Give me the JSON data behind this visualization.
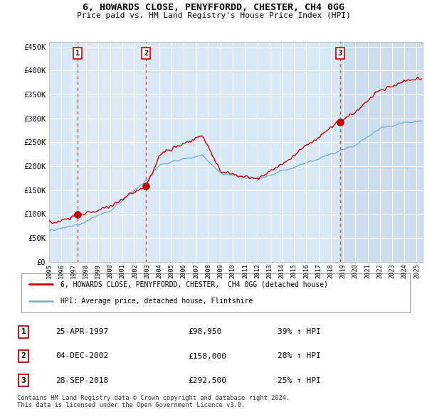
{
  "title1": "6, HOWARDS CLOSE, PENYFFORDD, CHESTER, CH4 0GG",
  "title2": "Price paid vs. HM Land Registry's House Price Index (HPI)",
  "ylabel_ticks": [
    "£0",
    "£50K",
    "£100K",
    "£150K",
    "£200K",
    "£250K",
    "£300K",
    "£350K",
    "£400K",
    "£450K"
  ],
  "ylabel_values": [
    0,
    50000,
    100000,
    150000,
    200000,
    250000,
    300000,
    350000,
    400000,
    450000
  ],
  "ylim": [
    0,
    460000
  ],
  "xlim_start": 1995.0,
  "xlim_end": 2025.5,
  "bg_color": "#ccdded",
  "grid_color": "#ffffff",
  "sale_dates": [
    1997.32,
    2002.92,
    2018.74
  ],
  "sale_prices": [
    98950,
    158000,
    292500
  ],
  "sale_labels": [
    "1",
    "2",
    "3"
  ],
  "legend_line1": "6, HOWARDS CLOSE, PENYFFORDD, CHESTER,  CH4 0GG (detached house)",
  "legend_line2": "HPI: Average price, detached house, Flintshire",
  "table_rows": [
    [
      "1",
      "25-APR-1997",
      "£98,950",
      "39% ↑ HPI"
    ],
    [
      "2",
      "04-DEC-2002",
      "£158,000",
      "28% ↑ HPI"
    ],
    [
      "3",
      "28-SEP-2018",
      "£292,500",
      "25% ↑ HPI"
    ]
  ],
  "footer": "Contains HM Land Registry data © Crown copyright and database right 2024.\nThis data is licensed under the Open Government Licence v3.0.",
  "hpi_color": "#7ab0d8",
  "price_color": "#cc0000",
  "vline_color": "#dd3333",
  "dot_color": "#cc0000",
  "shade_color": "#d8e8f4"
}
